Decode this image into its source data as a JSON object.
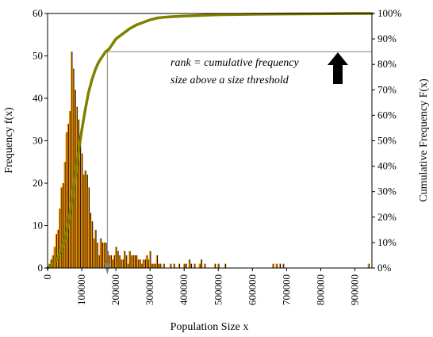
{
  "chart_data": {
    "type": "bar",
    "subtype": "histogram with cumulative frequency line",
    "xlabel": "Population Size x",
    "ylabel": "Frequency f(x)",
    "y2label": "Cumulative Frequency F(x)",
    "xlim": [
      0,
      950000
    ],
    "ylim": [
      0,
      60
    ],
    "y2lim": [
      0,
      1
    ],
    "x_ticks": [
      "0",
      "100000",
      "200000",
      "300000",
      "400000",
      "500000",
      "600000",
      "700000",
      "800000",
      "900000"
    ],
    "y_ticks": [
      "0",
      "10",
      "20",
      "30",
      "40",
      "50",
      "60"
    ],
    "y2_ticks": [
      "0%",
      "10%",
      "20%",
      "30%",
      "40%",
      "50%",
      "60%",
      "70%",
      "80%",
      "90%",
      "100%"
    ],
    "grid": false,
    "bin_width": 5000,
    "histogram": {
      "name": "Frequency f(x)",
      "color": "#ff9900",
      "x": [
        5000,
        10000,
        15000,
        20000,
        25000,
        30000,
        35000,
        40000,
        45000,
        50000,
        55000,
        60000,
        65000,
        70000,
        75000,
        80000,
        85000,
        90000,
        95000,
        100000,
        105000,
        110000,
        115000,
        120000,
        125000,
        130000,
        135000,
        140000,
        145000,
        150000,
        155000,
        160000,
        165000,
        170000,
        175000,
        180000,
        185000,
        190000,
        195000,
        200000,
        205000,
        210000,
        215000,
        220000,
        225000,
        230000,
        235000,
        240000,
        245000,
        250000,
        255000,
        260000,
        265000,
        270000,
        275000,
        280000,
        285000,
        290000,
        295000,
        300000,
        305000,
        310000,
        315000,
        320000,
        325000,
        330000,
        340000,
        360000,
        370000,
        385000,
        400000,
        405000,
        415000,
        420000,
        430000,
        445000,
        450000,
        460000,
        490000,
        500000,
        520000,
        660000,
        670000,
        680000,
        690000,
        940000
      ],
      "values": [
        1,
        2,
        3,
        5,
        8,
        9,
        14,
        19,
        20,
        25,
        32,
        34,
        37,
        51,
        47,
        42,
        38,
        35,
        29,
        27,
        22,
        23,
        22,
        19,
        13,
        11,
        7,
        9,
        6,
        3,
        7,
        6,
        6,
        6,
        4,
        3,
        3,
        2,
        3,
        5,
        4,
        3,
        2,
        2,
        4,
        3,
        1,
        4,
        3,
        3,
        3,
        3,
        2,
        2,
        1,
        2,
        2,
        3,
        2,
        4,
        1,
        1,
        1,
        3,
        1,
        1,
        1,
        1,
        1,
        1,
        1,
        1,
        2,
        1,
        1,
        1,
        2,
        1,
        1,
        1,
        1,
        1,
        1,
        1,
        1,
        1
      ],
      "shadow_color": "#000000"
    },
    "cumulative": {
      "name": "Cumulative Frequency F(x)",
      "color": "#808000",
      "x": [
        0,
        10000,
        20000,
        30000,
        40000,
        50000,
        60000,
        70000,
        80000,
        90000,
        100000,
        110000,
        120000,
        130000,
        140000,
        150000,
        160000,
        170000,
        180000,
        190000,
        200000,
        220000,
        240000,
        260000,
        280000,
        300000,
        320000,
        340000,
        360000,
        400000,
        500000,
        600000,
        700000,
        800000,
        900000,
        950000
      ],
      "values": [
        0.0,
        0.01,
        0.02,
        0.04,
        0.07,
        0.11,
        0.17,
        0.25,
        0.35,
        0.45,
        0.54,
        0.62,
        0.69,
        0.74,
        0.78,
        0.81,
        0.83,
        0.85,
        0.86,
        0.88,
        0.9,
        0.92,
        0.94,
        0.955,
        0.965,
        0.975,
        0.982,
        0.985,
        0.987,
        0.99,
        0.995,
        0.997,
        0.998,
        0.999,
        1.0,
        1.0
      ]
    },
    "threshold": {
      "x": 175000,
      "cumulative": 0.85,
      "line_color": "#808080"
    },
    "annotation": {
      "line1": "rank = cumulative frequency",
      "line2": "size above a size threshold",
      "arrow": "up-arrow-icon",
      "arrow_color": "#000000"
    }
  }
}
